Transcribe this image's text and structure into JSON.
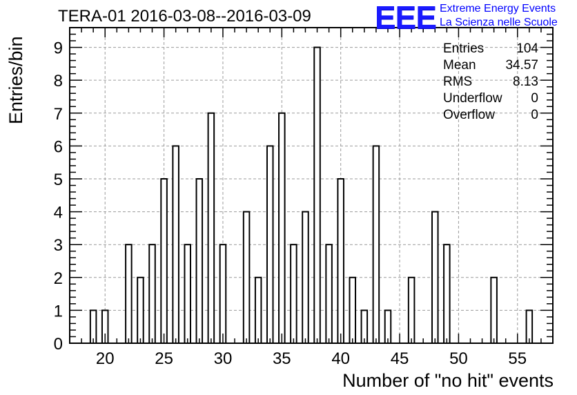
{
  "header": {
    "title": "TERA-01 2016-03-08--2016-03-09",
    "logo_text": "EEE",
    "logo_line1": "Extreme Energy Events",
    "logo_line2": "La Scienza nelle Scuole",
    "logo_color": "#1a1aff"
  },
  "stats": {
    "rows": [
      {
        "label": "Entries",
        "value": "104"
      },
      {
        "label": "Mean",
        "value": "34.57"
      },
      {
        "label": "RMS",
        "value": "8.13"
      },
      {
        "label": "Underflow",
        "value": "0"
      },
      {
        "label": "Overflow",
        "value": "0"
      }
    ]
  },
  "chart_data": {
    "type": "bar",
    "title": "TERA-01 2016-03-08--2016-03-09",
    "xlabel": "Number of \"no hit\" events",
    "ylabel": "Entries/bin",
    "xlim": [
      17,
      58
    ],
    "ylim": [
      0,
      9.6
    ],
    "bin_width": 0.5,
    "x_ticks": [
      20,
      25,
      30,
      35,
      40,
      45,
      50,
      55
    ],
    "y_ticks": [
      0,
      1,
      2,
      3,
      4,
      5,
      6,
      7,
      8,
      9
    ],
    "grid": true,
    "bar_color": "#ffffff",
    "edge_color": "#000000",
    "bins": [
      {
        "x": 19,
        "count": 1
      },
      {
        "x": 20,
        "count": 1
      },
      {
        "x": 22,
        "count": 3
      },
      {
        "x": 23,
        "count": 2
      },
      {
        "x": 24,
        "count": 3
      },
      {
        "x": 25,
        "count": 5
      },
      {
        "x": 26,
        "count": 6
      },
      {
        "x": 27,
        "count": 3
      },
      {
        "x": 28,
        "count": 5
      },
      {
        "x": 29,
        "count": 7
      },
      {
        "x": 30,
        "count": 3
      },
      {
        "x": 32,
        "count": 4
      },
      {
        "x": 33,
        "count": 2
      },
      {
        "x": 34,
        "count": 6
      },
      {
        "x": 35,
        "count": 7
      },
      {
        "x": 36,
        "count": 3
      },
      {
        "x": 37,
        "count": 4
      },
      {
        "x": 38,
        "count": 9
      },
      {
        "x": 39,
        "count": 3
      },
      {
        "x": 40,
        "count": 5
      },
      {
        "x": 41,
        "count": 2
      },
      {
        "x": 42,
        "count": 1
      },
      {
        "x": 43,
        "count": 6
      },
      {
        "x": 44,
        "count": 1
      },
      {
        "x": 46,
        "count": 2
      },
      {
        "x": 48,
        "count": 4
      },
      {
        "x": 49,
        "count": 3
      },
      {
        "x": 53,
        "count": 2
      },
      {
        "x": 56,
        "count": 1
      }
    ]
  }
}
